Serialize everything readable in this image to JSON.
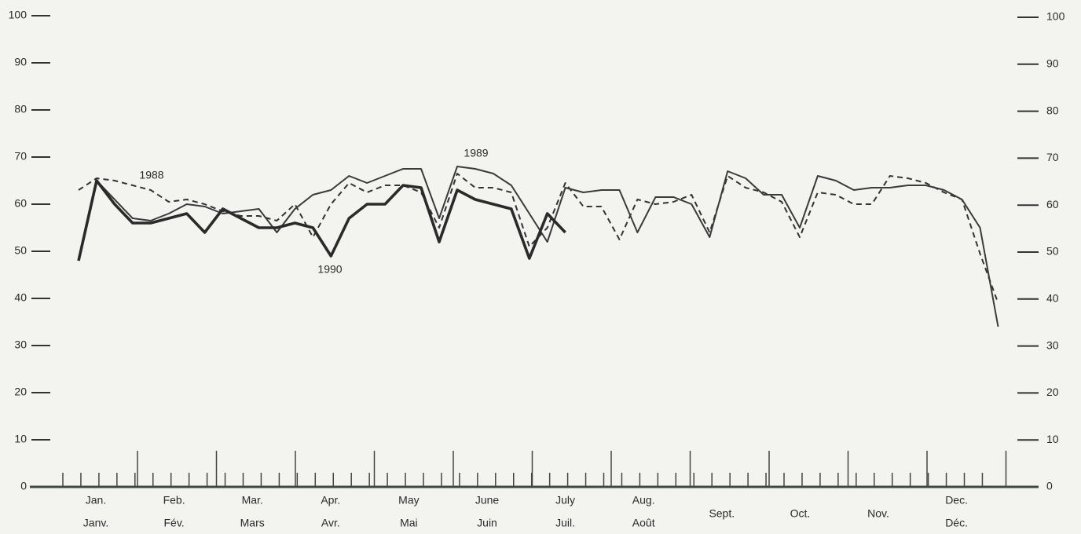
{
  "chart_data": {
    "type": "line",
    "categories": [
      null,
      null,
      null,
      null,
      null,
      null,
      null,
      null,
      null,
      null,
      null,
      null,
      null,
      null,
      null,
      null,
      null,
      null,
      null,
      null,
      null,
      null,
      null,
      null,
      null,
      null,
      null,
      null,
      null,
      null,
      null,
      null,
      null,
      null,
      null,
      null,
      null,
      null,
      null,
      null,
      null,
      null,
      null,
      null,
      null,
      null,
      null,
      null,
      null,
      null,
      null,
      null
    ],
    "month_labels": [
      {
        "en": "Jan.",
        "fr": "Janv."
      },
      {
        "en": "Feb.",
        "fr": "Fév."
      },
      {
        "en": "Mar.",
        "fr": "Mars"
      },
      {
        "en": "Apr.",
        "fr": "Avr."
      },
      {
        "en": "May",
        "fr": "Mai"
      },
      {
        "en": "June",
        "fr": "Juin"
      },
      {
        "en": "July",
        "fr": "Juil."
      },
      {
        "en": "Aug.",
        "fr": "Août"
      },
      {
        "en": "Sept."
      },
      {
        "en": "Oct."
      },
      {
        "en": "Nov."
      },
      {
        "en": "Dec.",
        "fr": "Déc."
      }
    ],
    "series": [
      {
        "name": "1988",
        "color": "#333333",
        "style": "dashed",
        "values": [
          63,
          65.5,
          65,
          64,
          63,
          60.5,
          61,
          60,
          58.5,
          57.5,
          57.5,
          56.5,
          60,
          53,
          60,
          64.5,
          62.5,
          64,
          64,
          62.5,
          55,
          66.5,
          63.5,
          63.5,
          62.5,
          51,
          55,
          64.5,
          59.5,
          59.5,
          52.5,
          61,
          60,
          60.5,
          62,
          54,
          66,
          63.5,
          62.5,
          60.5,
          53,
          62.5,
          62,
          60,
          60,
          66,
          65.5,
          64.5,
          62.5,
          61,
          49.5,
          39
        ]
      },
      {
        "name": "1989",
        "color": "#3a3a3a",
        "style": "thin",
        "values": [
          48,
          65,
          61,
          57,
          56.5,
          58,
          60,
          59.5,
          58,
          58.5,
          59,
          54,
          59,
          62,
          63,
          66,
          64.5,
          66,
          67.5,
          67.5,
          57,
          68,
          67.5,
          66.5,
          64,
          58,
          52,
          63.5,
          62.5,
          63,
          63,
          54,
          61.5,
          61.5,
          60,
          53,
          67,
          65.5,
          62,
          62,
          55,
          66,
          65,
          63,
          63.5,
          63.5,
          64,
          64,
          63,
          61,
          55,
          34
        ]
      },
      {
        "name": "1990",
        "color": "#2a2a2a",
        "style": "thick",
        "values": [
          48,
          65,
          60,
          56,
          56,
          57,
          58,
          54,
          59,
          57,
          55,
          55,
          56,
          55,
          49,
          57,
          60,
          60,
          64,
          63.5,
          52,
          63,
          61,
          60,
          59,
          48.5,
          58,
          54,
          null,
          null,
          null,
          null,
          null,
          null,
          null,
          null,
          null,
          null,
          null,
          null,
          null,
          null,
          null,
          null,
          null,
          null,
          null,
          null,
          null,
          null,
          null,
          null
        ]
      }
    ],
    "ylim": [
      0,
      100
    ],
    "yticks": [
      0,
      10,
      20,
      30,
      40,
      50,
      60,
      70,
      80,
      90,
      100
    ],
    "y2lim": [
      0,
      100
    ],
    "y2ticks": [
      0,
      10,
      20,
      30,
      40,
      50,
      60,
      70,
      80,
      90,
      100
    ]
  }
}
